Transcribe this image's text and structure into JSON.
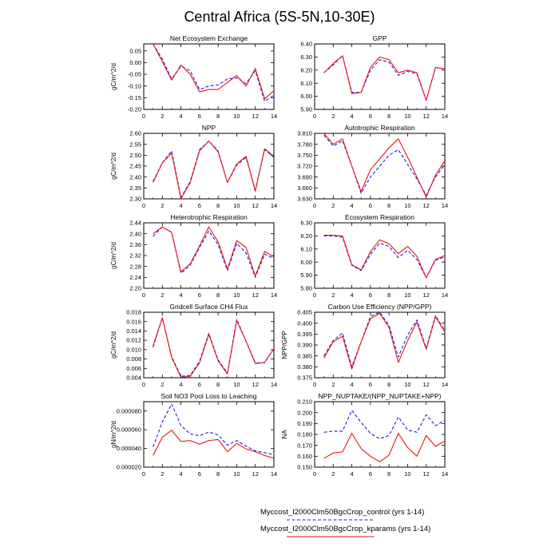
{
  "figure": {
    "title": "Central Africa (5S-5N,10-30E)",
    "colors": {
      "control": "#1f1fdd",
      "kparams": "#ee1111"
    },
    "legend": [
      {
        "key": "control",
        "label": "Myccost_I2000Clm50BgcCrop_control (yrs 1-14)",
        "dash": true
      },
      {
        "key": "kparams",
        "label": "Myccost_I2000Clm50BgcCrop_kparams (yrs 1-14)",
        "dash": false
      }
    ]
  },
  "chart_data": [
    {
      "type": "line",
      "title": "Net Ecosystem Exchange",
      "ylabel": "gC/m^2/d",
      "xlim": [
        0,
        14
      ],
      "xticks": [
        0,
        2,
        4,
        6,
        8,
        10,
        12,
        14
      ],
      "ylim": [
        -0.2,
        0.08
      ],
      "yticks": [
        -0.2,
        -0.15,
        -0.1,
        -0.05,
        0,
        0.05
      ],
      "ytick_labels": [
        "-0.20",
        "-0.15",
        "-0.10",
        "-0.05",
        "0.00",
        "0.05"
      ],
      "x": [
        1,
        2,
        3,
        4,
        5,
        6,
        7,
        8,
        9,
        10,
        11,
        12,
        13,
        14
      ],
      "series": [
        {
          "key": "control",
          "values": [
            0.08,
            0.015,
            -0.07,
            -0.015,
            -0.035,
            -0.115,
            -0.1,
            -0.095,
            -0.07,
            -0.065,
            -0.09,
            -0.035,
            -0.165,
            -0.14
          ]
        },
        {
          "key": "kparams",
          "values": [
            0.08,
            0.005,
            -0.075,
            -0.01,
            -0.05,
            -0.125,
            -0.115,
            -0.115,
            -0.085,
            -0.055,
            -0.1,
            -0.025,
            -0.155,
            -0.12
          ]
        }
      ]
    },
    {
      "type": "line",
      "title": "GPP",
      "ylabel": "",
      "xlim": [
        0,
        14
      ],
      "xticks": [
        0,
        2,
        4,
        6,
        8,
        10,
        12,
        14
      ],
      "ylim": [
        5.9,
        6.4
      ],
      "yticks": [
        5.9,
        6.0,
        6.1,
        6.2,
        6.3,
        6.4
      ],
      "ytick_labels": [
        "5.90",
        "6.00",
        "6.10",
        "6.20",
        "6.30",
        "6.40"
      ],
      "x": [
        1,
        2,
        3,
        4,
        5,
        6,
        7,
        8,
        9,
        10,
        11,
        12,
        13,
        14
      ],
      "series": [
        {
          "key": "control",
          "values": [
            6.18,
            6.24,
            6.31,
            6.03,
            6.03,
            6.2,
            6.28,
            6.26,
            6.16,
            6.19,
            6.17,
            5.97,
            6.22,
            6.21
          ]
        },
        {
          "key": "kparams",
          "values": [
            6.18,
            6.25,
            6.31,
            6.02,
            6.03,
            6.22,
            6.3,
            6.28,
            6.18,
            6.2,
            6.18,
            5.97,
            6.22,
            6.21
          ]
        }
      ]
    },
    {
      "type": "line",
      "title": "NPP",
      "ylabel": "gC/m^2/d",
      "xlim": [
        0,
        14
      ],
      "xticks": [
        0,
        2,
        4,
        6,
        8,
        10,
        12,
        14
      ],
      "ylim": [
        2.3,
        2.6
      ],
      "yticks": [
        2.3,
        2.35,
        2.4,
        2.45,
        2.5,
        2.55,
        2.6
      ],
      "ytick_labels": [
        "2.30",
        "2.35",
        "2.40",
        "2.45",
        "2.50",
        "2.55",
        "2.60"
      ],
      "x": [
        1,
        2,
        3,
        4,
        5,
        6,
        7,
        8,
        9,
        10,
        11,
        12,
        13,
        14
      ],
      "series": [
        {
          "key": "control",
          "values": [
            2.38,
            2.465,
            2.52,
            2.305,
            2.38,
            2.525,
            2.565,
            2.52,
            2.375,
            2.455,
            2.49,
            2.34,
            2.525,
            2.49
          ]
        },
        {
          "key": "kparams",
          "values": [
            2.375,
            2.465,
            2.51,
            2.3,
            2.375,
            2.52,
            2.565,
            2.515,
            2.375,
            2.46,
            2.495,
            2.335,
            2.53,
            2.495
          ]
        }
      ]
    },
    {
      "type": "line",
      "title": "Autotrophic Respiration",
      "ylabel": "",
      "xlim": [
        0,
        14
      ],
      "xticks": [
        0,
        2,
        4,
        6,
        8,
        10,
        12,
        14
      ],
      "ylim": [
        3.63,
        3.81
      ],
      "yticks": [
        3.63,
        3.66,
        3.69,
        3.72,
        3.75,
        3.78,
        3.81
      ],
      "ytick_labels": [
        "3.630",
        "3.660",
        "3.690",
        "3.720",
        "3.750",
        "3.780",
        "3.810"
      ],
      "x": [
        1,
        2,
        3,
        4,
        5,
        6,
        7,
        8,
        9,
        10,
        11,
        12,
        13,
        14
      ],
      "series": [
        {
          "key": "control",
          "values": [
            3.805,
            3.775,
            3.79,
            3.72,
            3.645,
            3.69,
            3.72,
            3.75,
            3.765,
            3.725,
            3.685,
            3.64,
            3.69,
            3.725
          ]
        },
        {
          "key": "kparams",
          "values": [
            3.81,
            3.78,
            3.795,
            3.72,
            3.65,
            3.71,
            3.74,
            3.77,
            3.795,
            3.745,
            3.69,
            3.635,
            3.695,
            3.735
          ]
        }
      ]
    },
    {
      "type": "line",
      "title": "Heterotrophic Respiration",
      "ylabel": "gC/m^2/d",
      "xlim": [
        0,
        14
      ],
      "xticks": [
        0,
        2,
        4,
        6,
        8,
        10,
        12,
        14
      ],
      "ylim": [
        2.2,
        2.44
      ],
      "yticks": [
        2.2,
        2.24,
        2.28,
        2.32,
        2.36,
        2.4,
        2.44
      ],
      "ytick_labels": [
        "2.20",
        "2.24",
        "2.28",
        "2.32",
        "2.36",
        "2.40",
        "2.44"
      ],
      "x": [
        1,
        2,
        3,
        4,
        5,
        6,
        7,
        8,
        9,
        10,
        11,
        12,
        13,
        14
      ],
      "series": [
        {
          "key": "control",
          "values": [
            2.39,
            2.425,
            2.405,
            2.255,
            2.285,
            2.35,
            2.41,
            2.36,
            2.265,
            2.365,
            2.33,
            2.24,
            2.325,
            2.31
          ]
        },
        {
          "key": "kparams",
          "values": [
            2.4,
            2.425,
            2.405,
            2.26,
            2.29,
            2.355,
            2.425,
            2.37,
            2.27,
            2.375,
            2.35,
            2.245,
            2.335,
            2.315
          ]
        }
      ]
    },
    {
      "type": "line",
      "title": "Ecosystem Respiration",
      "ylabel": "",
      "xlim": [
        0,
        14
      ],
      "xticks": [
        0,
        2,
        4,
        6,
        8,
        10,
        12,
        14
      ],
      "ylim": [
        5.8,
        6.3
      ],
      "yticks": [
        5.8,
        5.9,
        6.0,
        6.1,
        6.2,
        6.3
      ],
      "ytick_labels": [
        "5.80",
        "5.90",
        "6.00",
        "6.10",
        "6.20",
        "6.30"
      ],
      "x": [
        1,
        2,
        3,
        4,
        5,
        6,
        7,
        8,
        9,
        10,
        11,
        12,
        13,
        14
      ],
      "series": [
        {
          "key": "control",
          "values": [
            6.2,
            6.2,
            6.19,
            5.975,
            5.935,
            6.06,
            6.145,
            6.12,
            6.035,
            6.09,
            6.02,
            5.88,
            6.015,
            6.04
          ]
        },
        {
          "key": "kparams",
          "values": [
            6.205,
            6.205,
            6.2,
            5.98,
            5.94,
            6.08,
            6.17,
            6.14,
            6.065,
            6.12,
            6.045,
            5.88,
            6.02,
            6.05
          ]
        }
      ]
    },
    {
      "type": "line",
      "title": "Gridcell Surface CH4 Flux",
      "ylabel": "gC/m^2/d",
      "xlim": [
        0,
        14
      ],
      "xticks": [
        0,
        2,
        4,
        6,
        8,
        10,
        12,
        14
      ],
      "ylim": [
        0.004,
        0.018
      ],
      "yticks": [
        0.004,
        0.006,
        0.008,
        0.01,
        0.012,
        0.014,
        0.016,
        0.018
      ],
      "ytick_labels": [
        "0.004",
        "0.006",
        "0.008",
        "0.010",
        "0.012",
        "0.014",
        "0.016",
        "0.018"
      ],
      "x": [
        1,
        2,
        3,
        4,
        5,
        6,
        7,
        8,
        9,
        10,
        11,
        12,
        13,
        14
      ],
      "series": [
        {
          "key": "control",
          "values": [
            0.0105,
            0.0168,
            0.0085,
            0.0043,
            0.0045,
            0.0075,
            0.0135,
            0.0078,
            0.005,
            0.0165,
            0.0118,
            0.0072,
            0.0072,
            0.0102
          ]
        },
        {
          "key": "kparams",
          "values": [
            0.0108,
            0.0168,
            0.0083,
            0.0041,
            0.0043,
            0.0072,
            0.0133,
            0.0076,
            0.0048,
            0.0162,
            0.0118,
            0.007,
            0.0073,
            0.0102
          ]
        }
      ]
    },
    {
      "type": "line",
      "title": "Carbon Use Efficiency (NPP/GPP)",
      "ylabel": "NPP/GPP",
      "xlim": [
        0,
        14
      ],
      "xticks": [
        0,
        2,
        4,
        6,
        8,
        10,
        12,
        14
      ],
      "ylim": [
        0.375,
        0.405
      ],
      "yticks": [
        0.375,
        0.38,
        0.385,
        0.39,
        0.395,
        0.4,
        0.405
      ],
      "ytick_labels": [
        "0.375",
        "0.380",
        "0.385",
        "0.390",
        "0.395",
        "0.400",
        "0.405"
      ],
      "x": [
        1,
        2,
        3,
        4,
        5,
        6,
        7,
        8,
        9,
        10,
        11,
        12,
        13,
        14
      ],
      "series": [
        {
          "key": "control",
          "values": [
            0.385,
            0.392,
            0.3955,
            0.38,
            0.3915,
            0.403,
            0.405,
            0.399,
            0.3845,
            0.3945,
            0.4015,
            0.3885,
            0.4035,
            0.3965
          ]
        },
        {
          "key": "kparams",
          "values": [
            0.384,
            0.3915,
            0.394,
            0.379,
            0.3915,
            0.402,
            0.4045,
            0.398,
            0.382,
            0.392,
            0.4005,
            0.388,
            0.403,
            0.396
          ]
        }
      ]
    },
    {
      "type": "line",
      "title": "Soil NO3 Pool Loss to Leaching",
      "ylabel": "gN/m^2/d",
      "xlim": [
        0,
        14
      ],
      "xticks": [
        0,
        2,
        4,
        6,
        8,
        10,
        12,
        14
      ],
      "ylim": [
        2e-05,
        9e-05
      ],
      "yticks": [
        2e-05,
        4e-05,
        6e-05,
        8e-05
      ],
      "ytick_labels": [
        "0.000020",
        "0.000040",
        "0.000060",
        "0.000080"
      ],
      "x": [
        1,
        2,
        3,
        4,
        5,
        6,
        7,
        8,
        9,
        10,
        11,
        12,
        13,
        14
      ],
      "series": [
        {
          "key": "control",
          "values": [
            4.15e-05,
            6.85e-05,
            8.75e-05,
            6.45e-05,
            5.55e-05,
            5.35e-05,
            5.75e-05,
            5.45e-05,
            4.35e-05,
            4.85e-05,
            4.25e-05,
            3.75e-05,
            3.55e-05,
            3.35e-05
          ]
        },
        {
          "key": "kparams",
          "values": [
            3.25e-05,
            5.2e-05,
            5.95e-05,
            4.75e-05,
            4.85e-05,
            4.45e-05,
            4.85e-05,
            4.95e-05,
            3.65e-05,
            4.55e-05,
            3.95e-05,
            3.65e-05,
            3.25e-05,
            2.95e-05
          ]
        }
      ]
    },
    {
      "type": "line",
      "title": "NPP_NUPTAKE/(NPP_NUPTAKE+NPP)",
      "ylabel": "NA",
      "xlim": [
        0,
        14
      ],
      "xticks": [
        0,
        2,
        4,
        6,
        8,
        10,
        12,
        14
      ],
      "ylim": [
        0.15,
        0.21
      ],
      "yticks": [
        0.15,
        0.16,
        0.17,
        0.18,
        0.19,
        0.2,
        0.21
      ],
      "ytick_labels": [
        "0.150",
        "0.160",
        "0.170",
        "0.180",
        "0.190",
        "0.200",
        "0.210"
      ],
      "x": [
        1,
        2,
        3,
        4,
        5,
        6,
        7,
        8,
        9,
        10,
        11,
        12,
        13,
        14
      ],
      "series": [
        {
          "key": "control",
          "values": [
            0.182,
            0.183,
            0.183,
            0.202,
            0.191,
            0.181,
            0.176,
            0.179,
            0.196,
            0.184,
            0.182,
            0.198,
            0.188,
            0.193
          ]
        },
        {
          "key": "kparams",
          "values": [
            0.158,
            0.163,
            0.164,
            0.181,
            0.167,
            0.16,
            0.155,
            0.161,
            0.181,
            0.168,
            0.16,
            0.179,
            0.169,
            0.174
          ]
        }
      ]
    }
  ]
}
